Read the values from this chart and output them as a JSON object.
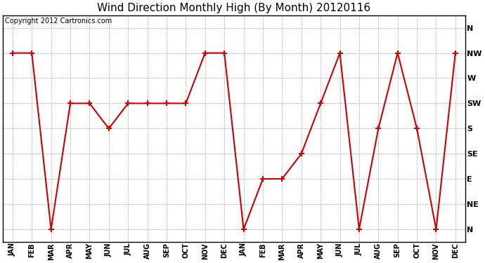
{
  "title": "Wind Direction Monthly High (By Month) 20120116",
  "copyright": "Copyright 2012 Cartronics.com",
  "x_labels": [
    "JAN",
    "FEB",
    "MAR",
    "APR",
    "MAY",
    "JUN",
    "JUL",
    "AUG",
    "SEP",
    "OCT",
    "NOV",
    "DEC",
    "JAN",
    "FEB",
    "MAR",
    "APR",
    "MAY",
    "JUN",
    "JUL",
    "AUG",
    "SEP",
    "OCT",
    "NOV",
    "DEC"
  ],
  "y_labels": [
    "N",
    "NE",
    "E",
    "SE",
    "S",
    "SW",
    "W",
    "NW",
    "N"
  ],
  "y_values": [
    0,
    1,
    2,
    3,
    4,
    5,
    6,
    7,
    8
  ],
  "data_values": [
    7,
    7,
    0,
    5,
    5,
    4,
    5,
    5,
    5,
    5,
    7,
    7,
    0,
    2,
    2,
    3,
    5,
    7,
    0,
    4,
    7,
    4,
    0,
    7
  ],
  "line_color": "#cc0000",
  "marker_color": "#cc0000",
  "background_color": "#ffffff",
  "plot_bg_color": "#ffffff",
  "grid_color": "#aaaaaa",
  "title_fontsize": 11,
  "copyright_fontsize": 7,
  "tick_fontsize": 8,
  "xtick_fontsize": 7
}
